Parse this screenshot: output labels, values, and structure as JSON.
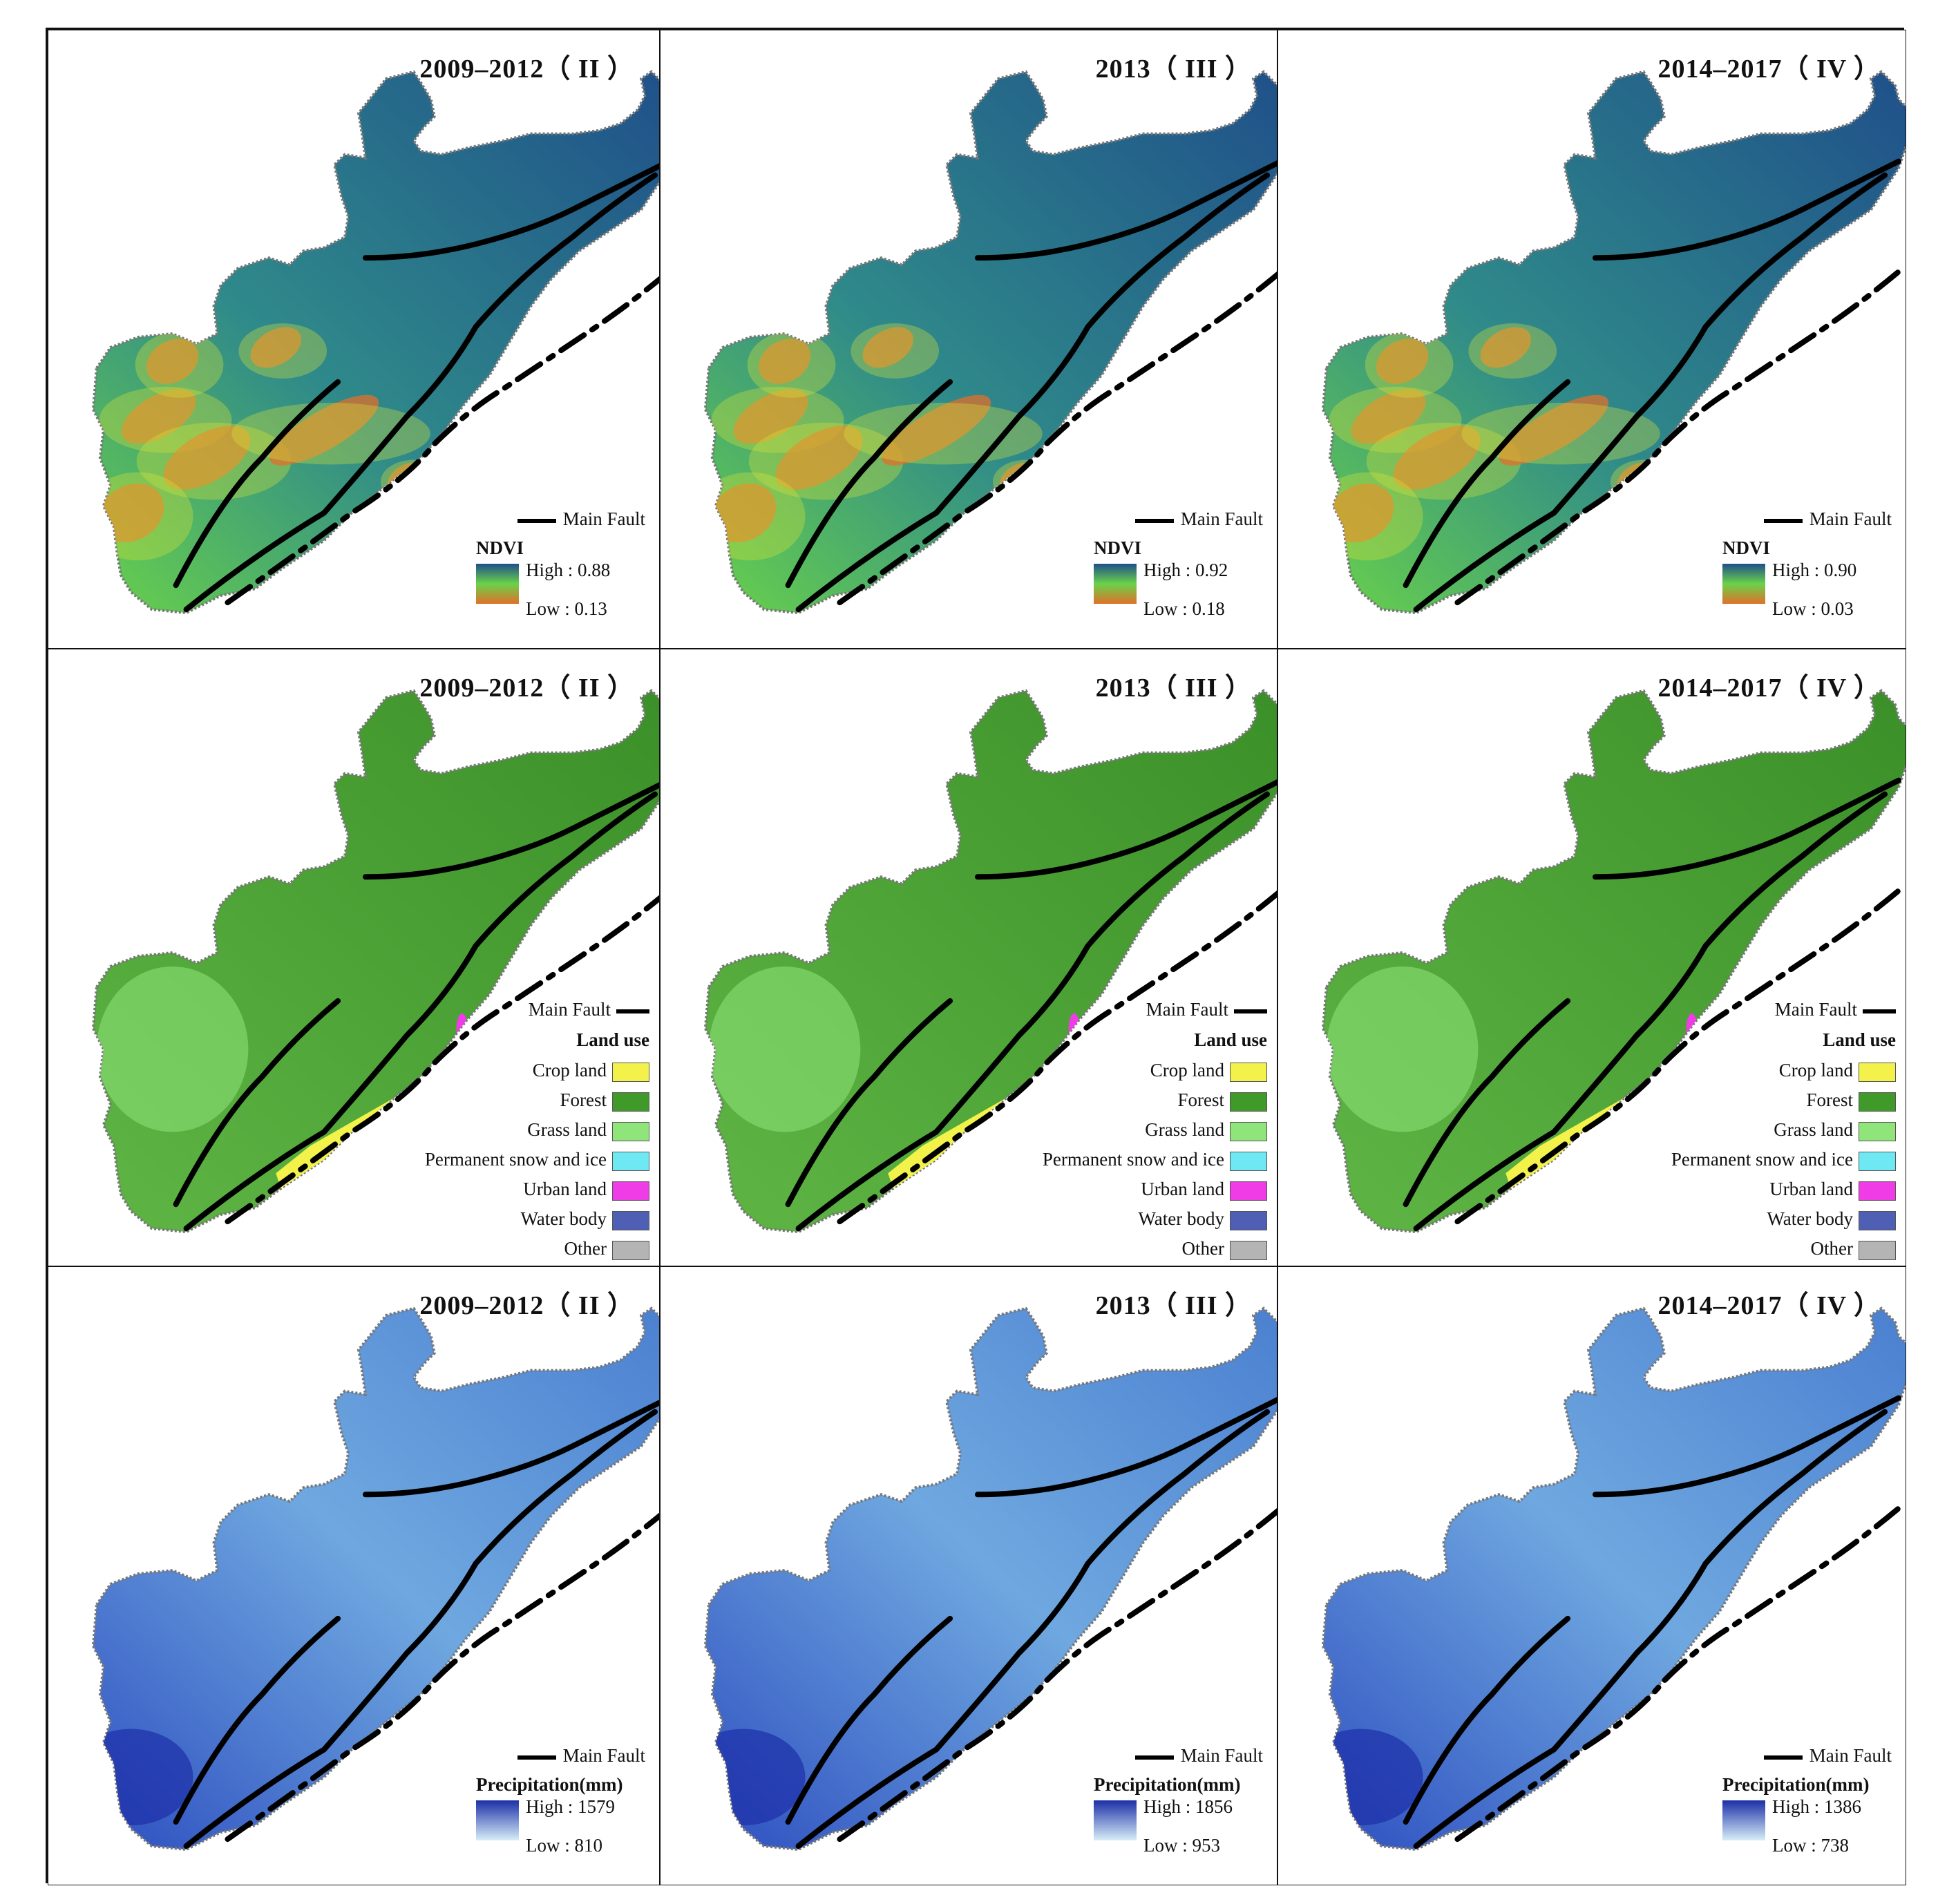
{
  "rows": [
    {
      "type": "ndvi",
      "panels": [
        {
          "title": "2009–2012（ II ）",
          "legend_title": "NDVI",
          "high": "High : 0.88",
          "low": "Low : 0.13"
        },
        {
          "title": "2013（ III ）",
          "legend_title": "NDVI",
          "high": "High : 0.92",
          "low": "Low : 0.18"
        },
        {
          "title": "2014–2017（ IV ）",
          "legend_title": "NDVI",
          "high": "High : 0.90",
          "low": "Low : 0.03"
        }
      ]
    },
    {
      "type": "landuse",
      "panels": [
        {
          "title": "2009–2012（ II ）"
        },
        {
          "title": "2013（ III ）"
        },
        {
          "title": "2014–2017（ IV ）"
        }
      ]
    },
    {
      "type": "precip",
      "panels": [
        {
          "title": "2009–2012（ II ）",
          "legend_title": "Precipitation(mm)",
          "high": "High : 1579",
          "low": "Low : 810"
        },
        {
          "title": "2013（ III ）",
          "legend_title": "Precipitation(mm)",
          "high": "High : 1856",
          "low": "Low : 953"
        },
        {
          "title": "2014–2017（ IV ）",
          "legend_title": "Precipitation(mm)",
          "high": "High : 1386",
          "low": "Low : 738"
        }
      ]
    }
  ],
  "fault_label": "Main Fault",
  "landuse_legend": {
    "title": "Land use",
    "classes": [
      {
        "label": "Crop land",
        "color": "#f2f24a"
      },
      {
        "label": "Forest",
        "color": "#3f9a2a"
      },
      {
        "label": "Grass land",
        "color": "#8fe57a"
      },
      {
        "label": "Permanent snow and ice",
        "color": "#6ee8f2"
      },
      {
        "label": "Urban land",
        "color": "#f03ce6"
      },
      {
        "label": "Water body",
        "color": "#4f5fb3"
      },
      {
        "label": "Other",
        "color": "#b4b4b4"
      }
    ]
  },
  "colors": {
    "ndvi_high": "#1f4f8a",
    "ndvi_mid": "#6ad24a",
    "ndvi_low": "#e0702a",
    "precip_high": "#1c2fa8",
    "precip_low": "#d8eef8"
  }
}
